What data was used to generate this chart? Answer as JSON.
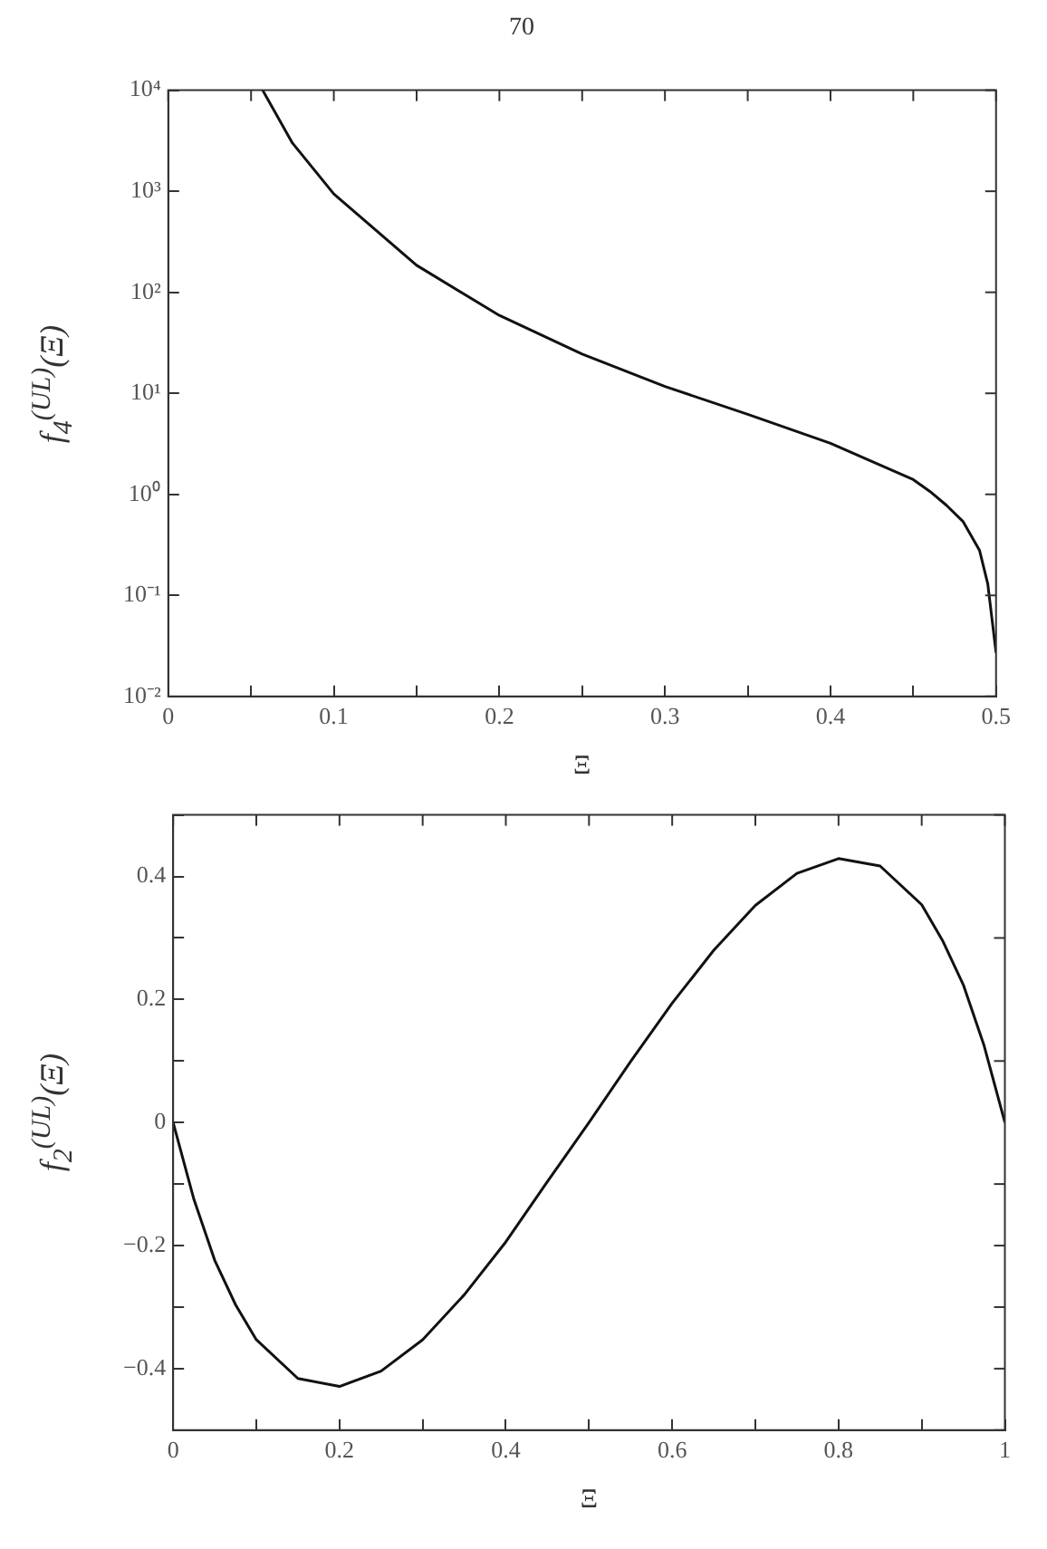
{
  "chart_data": [
    {
      "type": "line",
      "annotations": [
        "70"
      ],
      "xlabel": "Ξ",
      "ylabel": "f$_{4}$$^{(UL)}$(Ξ)",
      "log": "y",
      "color": "#111111",
      "marker": "none",
      "line_style": "solid",
      "grid": false,
      "legend": false,
      "x": [
        0.057,
        0.075,
        0.1,
        0.15,
        0.2,
        0.25,
        0.3,
        0.35,
        0.4,
        0.45,
        0.46,
        0.47,
        0.48,
        0.49,
        0.495,
        0.5
      ],
      "values": [
        10000,
        3000,
        940,
        185,
        59,
        24.5,
        11.7,
        6.2,
        3.2,
        1.4,
        1.07,
        0.78,
        0.54,
        0.28,
        0.13,
        0.027
      ],
      "xlim": [
        0,
        0.5
      ],
      "xticks": [
        0,
        {
          "value": 0.05,
          "label": null
        },
        0.1,
        {
          "value": 0.15,
          "label": null
        },
        0.2,
        {
          "value": 0.25,
          "label": null
        },
        0.3,
        {
          "value": 0.35,
          "label": null
        },
        0.4,
        {
          "value": 0.45,
          "label": null
        },
        0.5
      ],
      "ylim": [
        0.01,
        10000
      ],
      "yticks": [
        {
          "value": 0.01,
          "label": "10⁻²"
        },
        {
          "value": 0.1,
          "label": "10⁻¹"
        },
        {
          "value": 1,
          "label": "10⁰"
        },
        {
          "value": 10,
          "label": "10¹"
        },
        {
          "value": 100,
          "label": "10²"
        },
        {
          "value": 1000,
          "label": "10³"
        },
        {
          "value": 10000,
          "label": "10⁴"
        }
      ]
    },
    {
      "type": "line",
      "xlabel": "Ξ",
      "ylabel": "f$_{2}$$^{(UL)}$(Ξ)",
      "color": "#111111",
      "marker": "none",
      "line_style": "solid",
      "grid": false,
      "legend": false,
      "x": [
        0,
        0.025,
        0.05,
        0.075,
        0.1,
        0.15,
        0.2,
        0.25,
        0.3,
        0.35,
        0.4,
        0.45,
        0.5,
        0.55,
        0.6,
        0.65,
        0.7,
        0.75,
        0.8,
        0.85,
        0.9,
        0.925,
        0.95,
        0.975,
        1
      ],
      "values": [
        0,
        -0.125,
        -0.224,
        -0.296,
        -0.353,
        -0.416,
        -0.429,
        -0.404,
        -0.353,
        -0.28,
        -0.194,
        -0.096,
        0,
        0.099,
        0.194,
        0.28,
        0.353,
        0.405,
        0.429,
        0.417,
        0.354,
        0.296,
        0.224,
        0.125,
        0
      ],
      "xlim": [
        0,
        1
      ],
      "xticks": [
        0,
        {
          "value": 0.1,
          "label": null
        },
        0.2,
        {
          "value": 0.3,
          "label": null
        },
        0.4,
        {
          "value": 0.5,
          "label": null
        },
        0.6,
        {
          "value": 0.7,
          "label": null
        },
        0.8,
        {
          "value": 0.9,
          "label": null
        },
        1
      ],
      "ylim": [
        -0.5,
        0.5
      ],
      "yticks": [
        {
          "value": -0.5,
          "label": null
        },
        {
          "value": -0.4,
          "label": "−0.4"
        },
        {
          "value": -0.3,
          "label": null
        },
        {
          "value": -0.2,
          "label": "−0.2"
        },
        {
          "value": -0.1,
          "label": null
        },
        0,
        {
          "value": 0.1,
          "label": null
        },
        0.2,
        {
          "value": 0.3,
          "label": null
        },
        0.4,
        {
          "value": 0.5,
          "label": null
        }
      ]
    }
  ]
}
